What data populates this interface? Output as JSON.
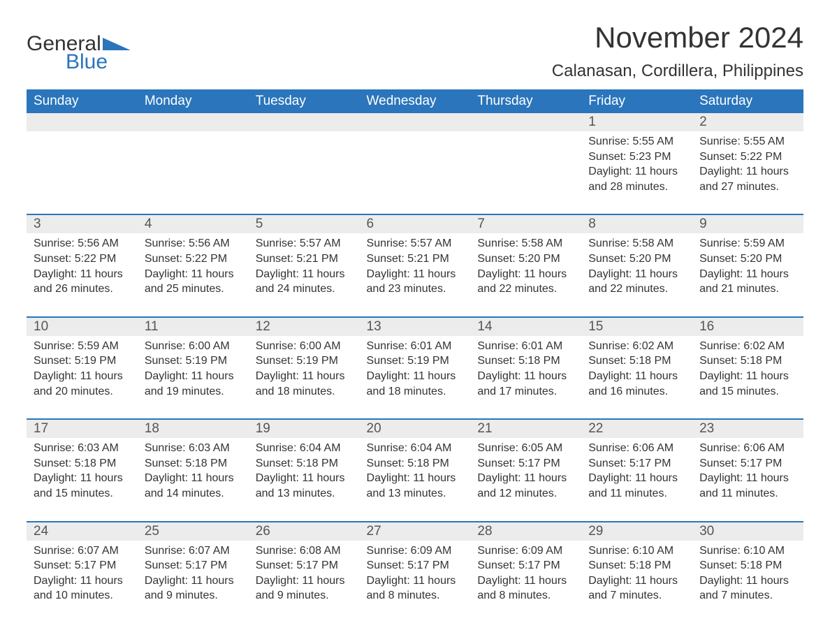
{
  "logo": {
    "word1": "General",
    "word2": "Blue",
    "accent_color": "#2a75bb",
    "text_color": "#333333"
  },
  "title": "November 2024",
  "location": "Calanasan, Cordillera, Philippines",
  "colors": {
    "header_bg": "#2a75bb",
    "header_text": "#ffffff",
    "row_divider": "#2a75bb",
    "daynum_bg": "#ececec",
    "body_text": "#333333",
    "page_bg": "#ffffff"
  },
  "typography": {
    "title_fontsize": 42,
    "location_fontsize": 24,
    "header_fontsize": 19,
    "daynum_fontsize": 19,
    "body_fontsize": 16
  },
  "weekdays": [
    "Sunday",
    "Monday",
    "Tuesday",
    "Wednesday",
    "Thursday",
    "Friday",
    "Saturday"
  ],
  "labels": {
    "sunrise": "Sunrise:",
    "sunset": "Sunset:",
    "daylight": "Daylight:"
  },
  "weeks": [
    [
      null,
      null,
      null,
      null,
      null,
      {
        "n": "1",
        "sunrise": "5:55 AM",
        "sunset": "5:23 PM",
        "daylight": "11 hours and 28 minutes."
      },
      {
        "n": "2",
        "sunrise": "5:55 AM",
        "sunset": "5:22 PM",
        "daylight": "11 hours and 27 minutes."
      }
    ],
    [
      {
        "n": "3",
        "sunrise": "5:56 AM",
        "sunset": "5:22 PM",
        "daylight": "11 hours and 26 minutes."
      },
      {
        "n": "4",
        "sunrise": "5:56 AM",
        "sunset": "5:22 PM",
        "daylight": "11 hours and 25 minutes."
      },
      {
        "n": "5",
        "sunrise": "5:57 AM",
        "sunset": "5:21 PM",
        "daylight": "11 hours and 24 minutes."
      },
      {
        "n": "6",
        "sunrise": "5:57 AM",
        "sunset": "5:21 PM",
        "daylight": "11 hours and 23 minutes."
      },
      {
        "n": "7",
        "sunrise": "5:58 AM",
        "sunset": "5:20 PM",
        "daylight": "11 hours and 22 minutes."
      },
      {
        "n": "8",
        "sunrise": "5:58 AM",
        "sunset": "5:20 PM",
        "daylight": "11 hours and 22 minutes."
      },
      {
        "n": "9",
        "sunrise": "5:59 AM",
        "sunset": "5:20 PM",
        "daylight": "11 hours and 21 minutes."
      }
    ],
    [
      {
        "n": "10",
        "sunrise": "5:59 AM",
        "sunset": "5:19 PM",
        "daylight": "11 hours and 20 minutes."
      },
      {
        "n": "11",
        "sunrise": "6:00 AM",
        "sunset": "5:19 PM",
        "daylight": "11 hours and 19 minutes."
      },
      {
        "n": "12",
        "sunrise": "6:00 AM",
        "sunset": "5:19 PM",
        "daylight": "11 hours and 18 minutes."
      },
      {
        "n": "13",
        "sunrise": "6:01 AM",
        "sunset": "5:19 PM",
        "daylight": "11 hours and 18 minutes."
      },
      {
        "n": "14",
        "sunrise": "6:01 AM",
        "sunset": "5:18 PM",
        "daylight": "11 hours and 17 minutes."
      },
      {
        "n": "15",
        "sunrise": "6:02 AM",
        "sunset": "5:18 PM",
        "daylight": "11 hours and 16 minutes."
      },
      {
        "n": "16",
        "sunrise": "6:02 AM",
        "sunset": "5:18 PM",
        "daylight": "11 hours and 15 minutes."
      }
    ],
    [
      {
        "n": "17",
        "sunrise": "6:03 AM",
        "sunset": "5:18 PM",
        "daylight": "11 hours and 15 minutes."
      },
      {
        "n": "18",
        "sunrise": "6:03 AM",
        "sunset": "5:18 PM",
        "daylight": "11 hours and 14 minutes."
      },
      {
        "n": "19",
        "sunrise": "6:04 AM",
        "sunset": "5:18 PM",
        "daylight": "11 hours and 13 minutes."
      },
      {
        "n": "20",
        "sunrise": "6:04 AM",
        "sunset": "5:18 PM",
        "daylight": "11 hours and 13 minutes."
      },
      {
        "n": "21",
        "sunrise": "6:05 AM",
        "sunset": "5:17 PM",
        "daylight": "11 hours and 12 minutes."
      },
      {
        "n": "22",
        "sunrise": "6:06 AM",
        "sunset": "5:17 PM",
        "daylight": "11 hours and 11 minutes."
      },
      {
        "n": "23",
        "sunrise": "6:06 AM",
        "sunset": "5:17 PM",
        "daylight": "11 hours and 11 minutes."
      }
    ],
    [
      {
        "n": "24",
        "sunrise": "6:07 AM",
        "sunset": "5:17 PM",
        "daylight": "11 hours and 10 minutes."
      },
      {
        "n": "25",
        "sunrise": "6:07 AM",
        "sunset": "5:17 PM",
        "daylight": "11 hours and 9 minutes."
      },
      {
        "n": "26",
        "sunrise": "6:08 AM",
        "sunset": "5:17 PM",
        "daylight": "11 hours and 9 minutes."
      },
      {
        "n": "27",
        "sunrise": "6:09 AM",
        "sunset": "5:17 PM",
        "daylight": "11 hours and 8 minutes."
      },
      {
        "n": "28",
        "sunrise": "6:09 AM",
        "sunset": "5:17 PM",
        "daylight": "11 hours and 8 minutes."
      },
      {
        "n": "29",
        "sunrise": "6:10 AM",
        "sunset": "5:18 PM",
        "daylight": "11 hours and 7 minutes."
      },
      {
        "n": "30",
        "sunrise": "6:10 AM",
        "sunset": "5:18 PM",
        "daylight": "11 hours and 7 minutes."
      }
    ]
  ]
}
